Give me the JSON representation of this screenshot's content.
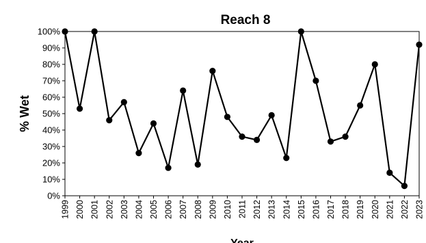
{
  "chart_data": {
    "type": "line",
    "title": "Reach 8",
    "xlabel": "Year",
    "ylabel": "% Wet",
    "ylim": [
      0,
      100
    ],
    "y_ticks": [
      "0%",
      "10%",
      "20%",
      "30%",
      "40%",
      "50%",
      "60%",
      "70%",
      "80%",
      "90%",
      "100%"
    ],
    "grid": false,
    "categories": [
      "1999",
      "2000",
      "2001",
      "2002",
      "2003",
      "2004",
      "2005",
      "2006",
      "2007",
      "2008",
      "2009",
      "2010",
      "2011",
      "2012",
      "2013",
      "2014",
      "2015",
      "2016",
      "2017",
      "2018",
      "2019",
      "2020",
      "2021",
      "2022",
      "2023"
    ],
    "series": [
      {
        "values": [
          100,
          53,
          100,
          46,
          57,
          26,
          44,
          17,
          64,
          19,
          76,
          48,
          36,
          34,
          49,
          23,
          100,
          70,
          33,
          36,
          55,
          80,
          14,
          6,
          92
        ],
        "color": "#000000"
      }
    ]
  }
}
